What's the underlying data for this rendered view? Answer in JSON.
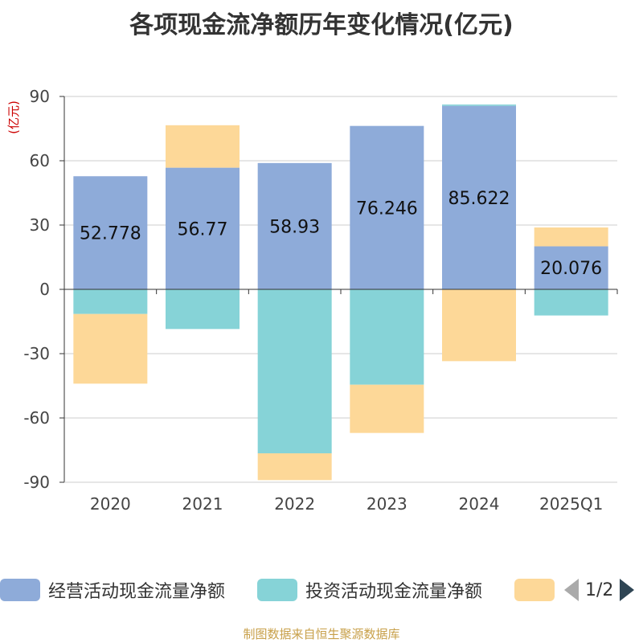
{
  "title": "各项现金流净额历年变化情况(亿元)",
  "footer": "制图数据来自恒生聚源数据库",
  "legend_page": "1/2",
  "chart_data": {
    "type": "bar",
    "stacked": true,
    "title": "各项现金流净额历年变化情况(亿元)",
    "ylabel": "(亿元)",
    "ylim": [
      -90,
      90
    ],
    "yticks": [
      90,
      60,
      30,
      0,
      -30,
      -60,
      -90
    ],
    "categories": [
      "2020",
      "2021",
      "2022",
      "2023",
      "2024",
      "2025Q1"
    ],
    "series": [
      {
        "name": "经营活动现金流量净额",
        "color": "#8eabd9",
        "values": [
          52.778,
          56.77,
          58.93,
          76.246,
          85.622,
          20.076
        ],
        "show_labels": true
      },
      {
        "name": "投资活动现金流量净额",
        "color": "#86d3d7",
        "values": [
          -11.5,
          -18.5,
          -76.5,
          -44.5,
          0.6,
          -12.2
        ],
        "show_labels": false
      },
      {
        "name": "",
        "color": "#fdd898",
        "values": [
          -32.5,
          19.8,
          -12.5,
          -22.5,
          -33.5,
          8.8
        ],
        "show_labels": false
      }
    ]
  }
}
